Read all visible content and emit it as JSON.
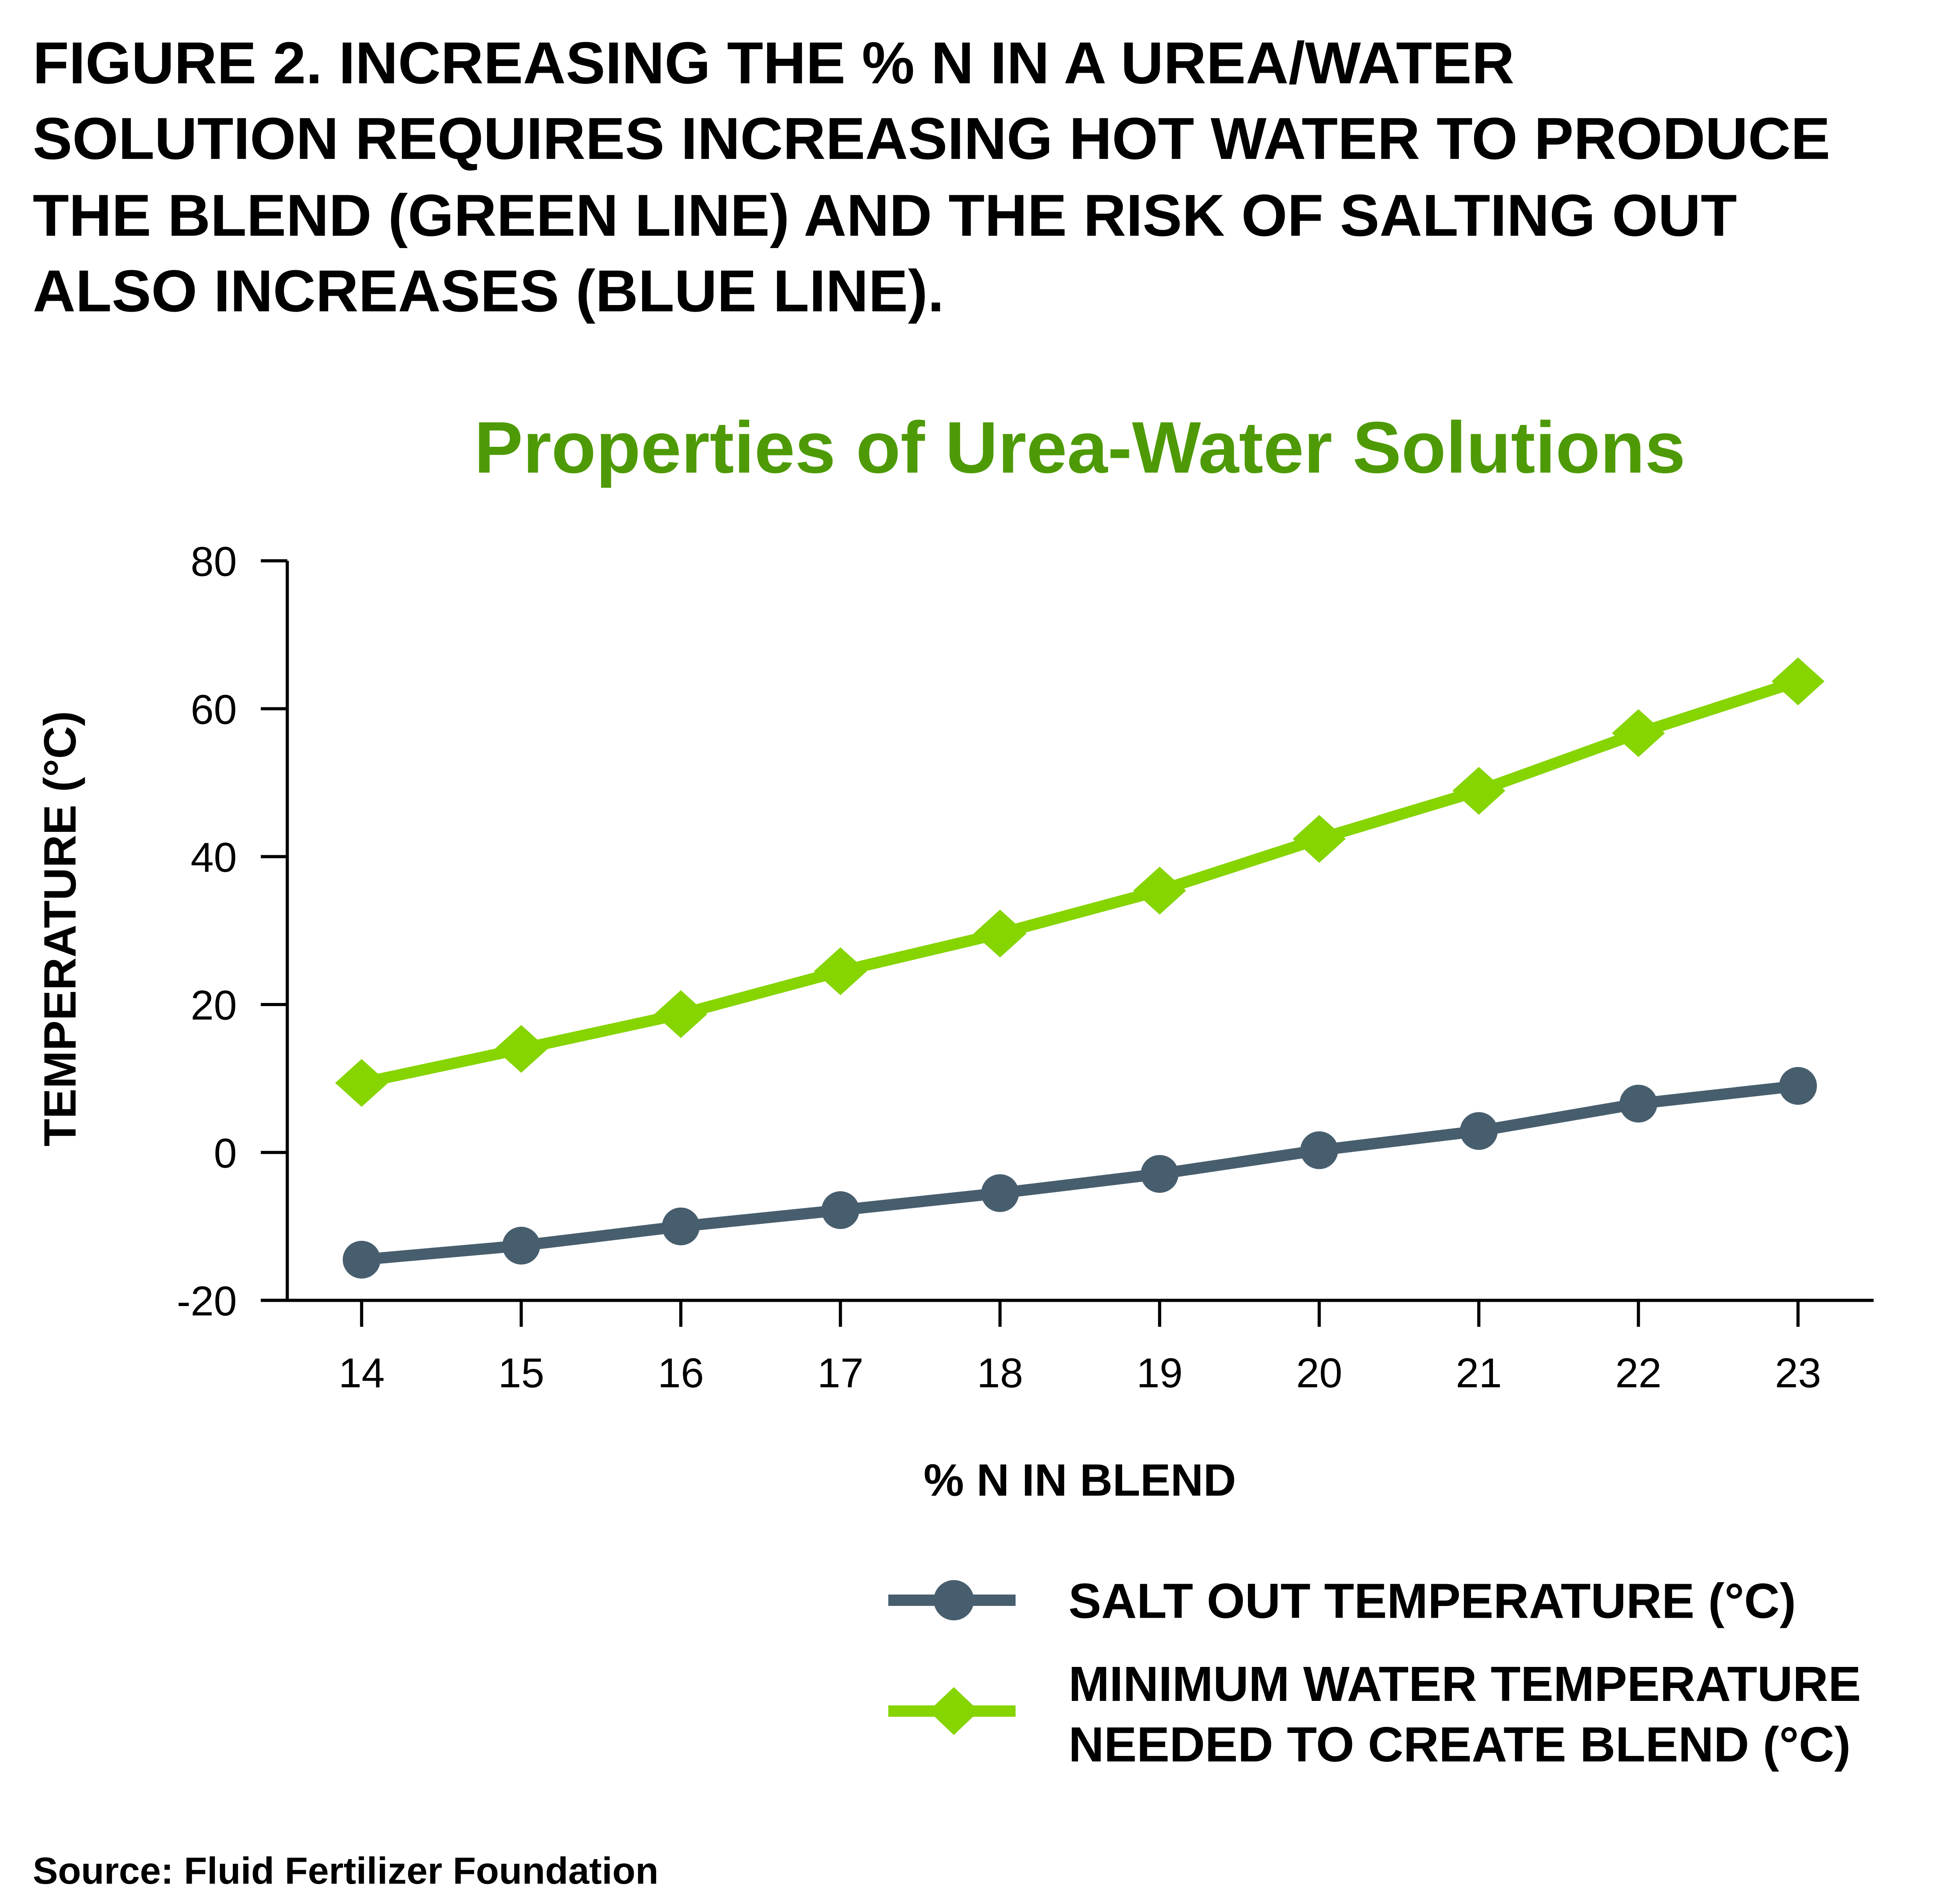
{
  "header": {
    "lines": [
      "FIGURE 2. INCREASING THE % N IN A UREA/WATER",
      "SOLUTION REQUIRES INCREASING HOT WATER TO PRODUCE",
      "THE BLEND (GREEN LINE) AND THE RISK OF SALTING OUT",
      "ALSO INCREASES (BLUE LINE)."
    ]
  },
  "source": "Source: Fluid Fertilizer Foundation",
  "chart_data": {
    "type": "line",
    "title": "Properties of Urea-Water Solutions",
    "title_color": "#4e9a06",
    "xlabel": "% N IN BLEND",
    "ylabel": "TEMPERATURE  (°C)",
    "x": [
      14,
      15,
      16,
      17,
      18,
      19,
      20,
      21,
      22,
      23
    ],
    "x_tick_labels": [
      "14",
      "15",
      "16",
      "17",
      "18",
      "19",
      "20",
      "21",
      "22",
      "23"
    ],
    "ylim": [
      -20,
      80
    ],
    "y_tick_labels": [
      "80",
      "60",
      "40",
      "20",
      "0",
      "-20"
    ],
    "y_ticks": [
      80,
      60,
      40,
      20,
      0,
      -20
    ],
    "grid": false,
    "legend_placement": "bottom-right",
    "series": [
      {
        "name": "SALT OUT TEMPERATURE (°C)",
        "legend_lines": [
          "SALT OUT TEMPERATURE (°C)"
        ],
        "color": "#475e6e",
        "marker": "circle",
        "values": [
          -14.5,
          -12.6,
          -10.0,
          -7.8,
          -5.5,
          -2.9,
          0.3,
          2.9,
          6.6,
          9.0
        ]
      },
      {
        "name": "MINIMUM WATER TEMPERATURE NEEDED TO CREATE BLEND (°C)",
        "legend_lines": [
          "MINIMUM WATER TEMPERATURE",
          "NEEDED TO CREATE BLEND (°C)"
        ],
        "color": "#86d400",
        "marker": "diamond",
        "values": [
          9.4,
          14.0,
          18.7,
          24.5,
          29.6,
          35.4,
          42.4,
          48.9,
          56.7,
          63.7
        ]
      }
    ]
  }
}
